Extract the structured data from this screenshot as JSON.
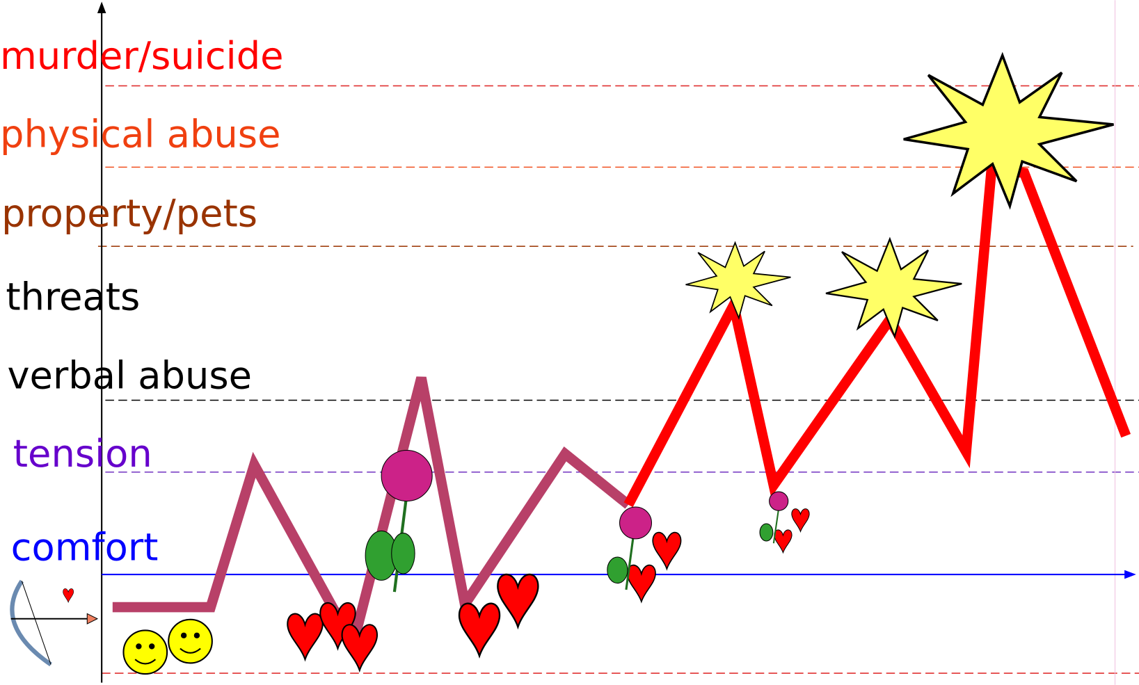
{
  "levels": [
    {
      "label": "murder/suicide"
    },
    {
      "label": "physical abuse"
    },
    {
      "label": "property/pets"
    },
    {
      "label": "threats"
    },
    {
      "label": "verbal abuse"
    },
    {
      "label": "tension"
    },
    {
      "label": "comfort"
    }
  ]
}
